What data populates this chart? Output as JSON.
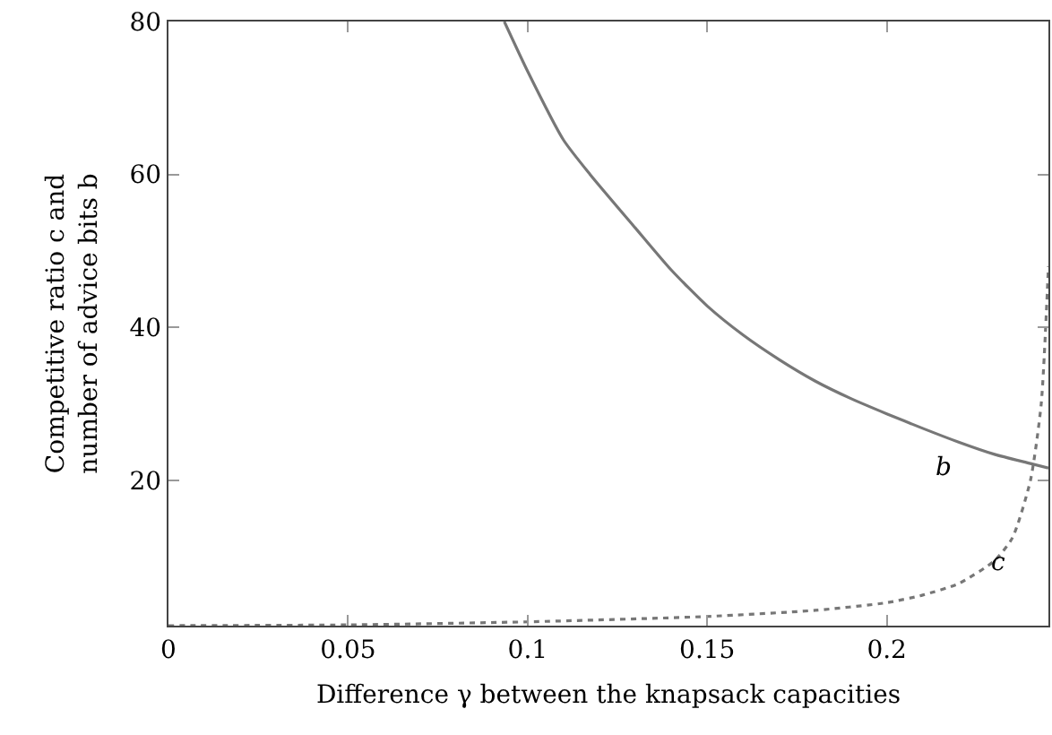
{
  "chart_data": {
    "type": "line",
    "xlabel": "Difference γ between the knapsack capacities",
    "ylabel": "Competitive ratio c and\nnumber of advice bits b",
    "xlim": [
      0,
      0.245
    ],
    "ylim": [
      1,
      80
    ],
    "xticks": [
      0,
      0.05,
      0.1,
      0.15,
      0.2
    ],
    "yticks": [
      20,
      40,
      60,
      80
    ],
    "marker": "none",
    "series": [
      {
        "name": "b",
        "color": "#777777",
        "line_style": "solid",
        "x": [
          0.0935,
          0.1,
          0.11,
          0.1174,
          0.13,
          0.14,
          0.15,
          0.16,
          0.17,
          0.18,
          0.19,
          0.2,
          0.21,
          0.22,
          0.23,
          0.24,
          0.245
        ],
        "values": [
          80,
          73.5,
          64.5,
          60,
          53,
          47.5,
          42.8,
          39,
          35.8,
          33,
          30.7,
          28.7,
          26.8,
          25,
          23.4,
          22.2,
          21.6
        ]
      },
      {
        "name": "c",
        "color": "#777777",
        "line_style": "dotted",
        "x": [
          0,
          0.05,
          0.1,
          0.15,
          0.18,
          0.2,
          0.21,
          0.22,
          0.23,
          0.235,
          0.24,
          0.243,
          0.245
        ],
        "values": [
          1,
          1.1,
          1.5,
          2.2,
          3,
          4,
          5,
          6.5,
          9.5,
          12.5,
          20,
          30,
          48
        ]
      }
    ]
  }
}
